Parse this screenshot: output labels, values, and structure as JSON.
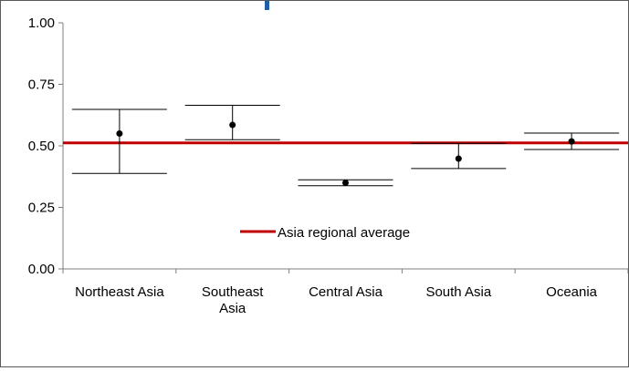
{
  "colors": {
    "average_line": "#c00000",
    "points": "#000000",
    "error_bars": "#000000",
    "axis": "#7f7f7f",
    "top_marker": "#1f5fa8"
  },
  "chart_data": {
    "type": "scatter",
    "title": "",
    "xlabel": "",
    "ylabel": "",
    "ylim": [
      0,
      1
    ],
    "yticks": [
      "0.00",
      "0.25",
      "0.50",
      "0.75",
      "1.00"
    ],
    "grid": false,
    "legend_position": "center",
    "categories": [
      "Northeast Asia",
      "Southeast Asia",
      "Central Asia",
      "South Asia",
      "Oceania"
    ],
    "category_lines": [
      [
        "Northeast Asia"
      ],
      [
        "Southeast",
        "Asia"
      ],
      [
        "Central Asia"
      ],
      [
        "South Asia"
      ],
      [
        "Oceania"
      ]
    ],
    "points": [
      0.55,
      0.585,
      0.35,
      0.448,
      0.518
    ],
    "error_high": [
      0.648,
      0.665,
      0.362,
      0.51,
      0.552
    ],
    "error_low": [
      0.388,
      0.525,
      0.338,
      0.408,
      0.485
    ],
    "reference_line": {
      "name": "Asia regional average",
      "value": 0.512
    },
    "legend": [
      "Asia regional average"
    ]
  }
}
